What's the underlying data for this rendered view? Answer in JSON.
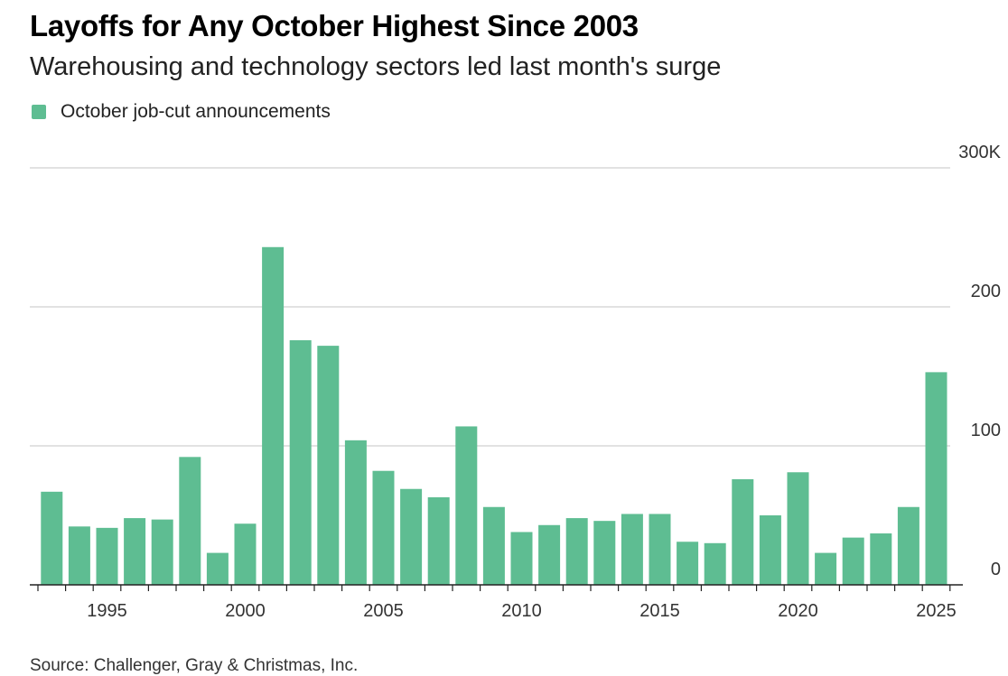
{
  "title": "Layoffs for Any October Highest Since 2003",
  "subtitle": "Warehousing and technology sectors led last month's surge",
  "legend": {
    "label": "October job-cut announcements",
    "color": "#5ebd92"
  },
  "source": "Source: Challenger, Gray & Christmas, Inc.",
  "colors": {
    "bar": "#5ebd92",
    "grid": "#d9d9d9",
    "axis": "#222222",
    "tick_text": "#333333"
  },
  "chart_data": {
    "type": "bar",
    "title": "Layoffs for Any October Highest Since 2003",
    "subtitle": "Warehousing and technology sectors led last month's surge",
    "xlabel": "",
    "ylabel": "",
    "series": [
      {
        "name": "October job-cut announcements",
        "x": [
          1993,
          1994,
          1995,
          1996,
          1997,
          1998,
          1999,
          2000,
          2001,
          2002,
          2003,
          2004,
          2005,
          2006,
          2007,
          2008,
          2009,
          2010,
          2011,
          2012,
          2013,
          2014,
          2015,
          2016,
          2017,
          2018,
          2019,
          2020,
          2021,
          2022,
          2023,
          2024,
          2025
        ],
        "values": [
          67,
          42,
          41,
          48,
          47,
          92,
          23,
          44,
          243,
          176,
          172,
          104,
          82,
          69,
          63,
          114,
          56,
          38,
          43,
          48,
          46,
          51,
          51,
          31,
          30,
          76,
          50,
          81,
          23,
          34,
          37,
          56,
          153
        ]
      }
    ],
    "ylim": [
      0,
      300
    ],
    "y_ticks": [
      {
        "value": 0,
        "label": "0"
      },
      {
        "value": 100,
        "label": "100"
      },
      {
        "value": 200,
        "label": "200"
      },
      {
        "value": 300,
        "label": "300K"
      }
    ],
    "x_tick_labels": [
      {
        "year": 1995,
        "label": "1995"
      },
      {
        "year": 2000,
        "label": "2000"
      },
      {
        "year": 2005,
        "label": "2005"
      },
      {
        "year": 2010,
        "label": "2010"
      },
      {
        "year": 2015,
        "label": "2015"
      },
      {
        "year": 2020,
        "label": "2020"
      },
      {
        "year": 2025,
        "label": "2025"
      }
    ],
    "grid": true,
    "legend_position": "top-left"
  }
}
